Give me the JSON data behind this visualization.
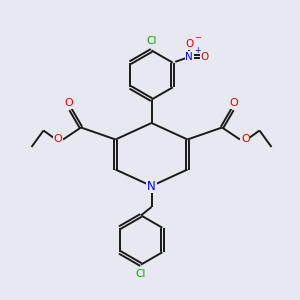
{
  "bg_color": "#e8e8f0",
  "bond_color": "#1a1a1a",
  "atom_colors": {
    "N": "#0000ee",
    "O": "#ee0000",
    "Cl": "#00aa00"
  }
}
